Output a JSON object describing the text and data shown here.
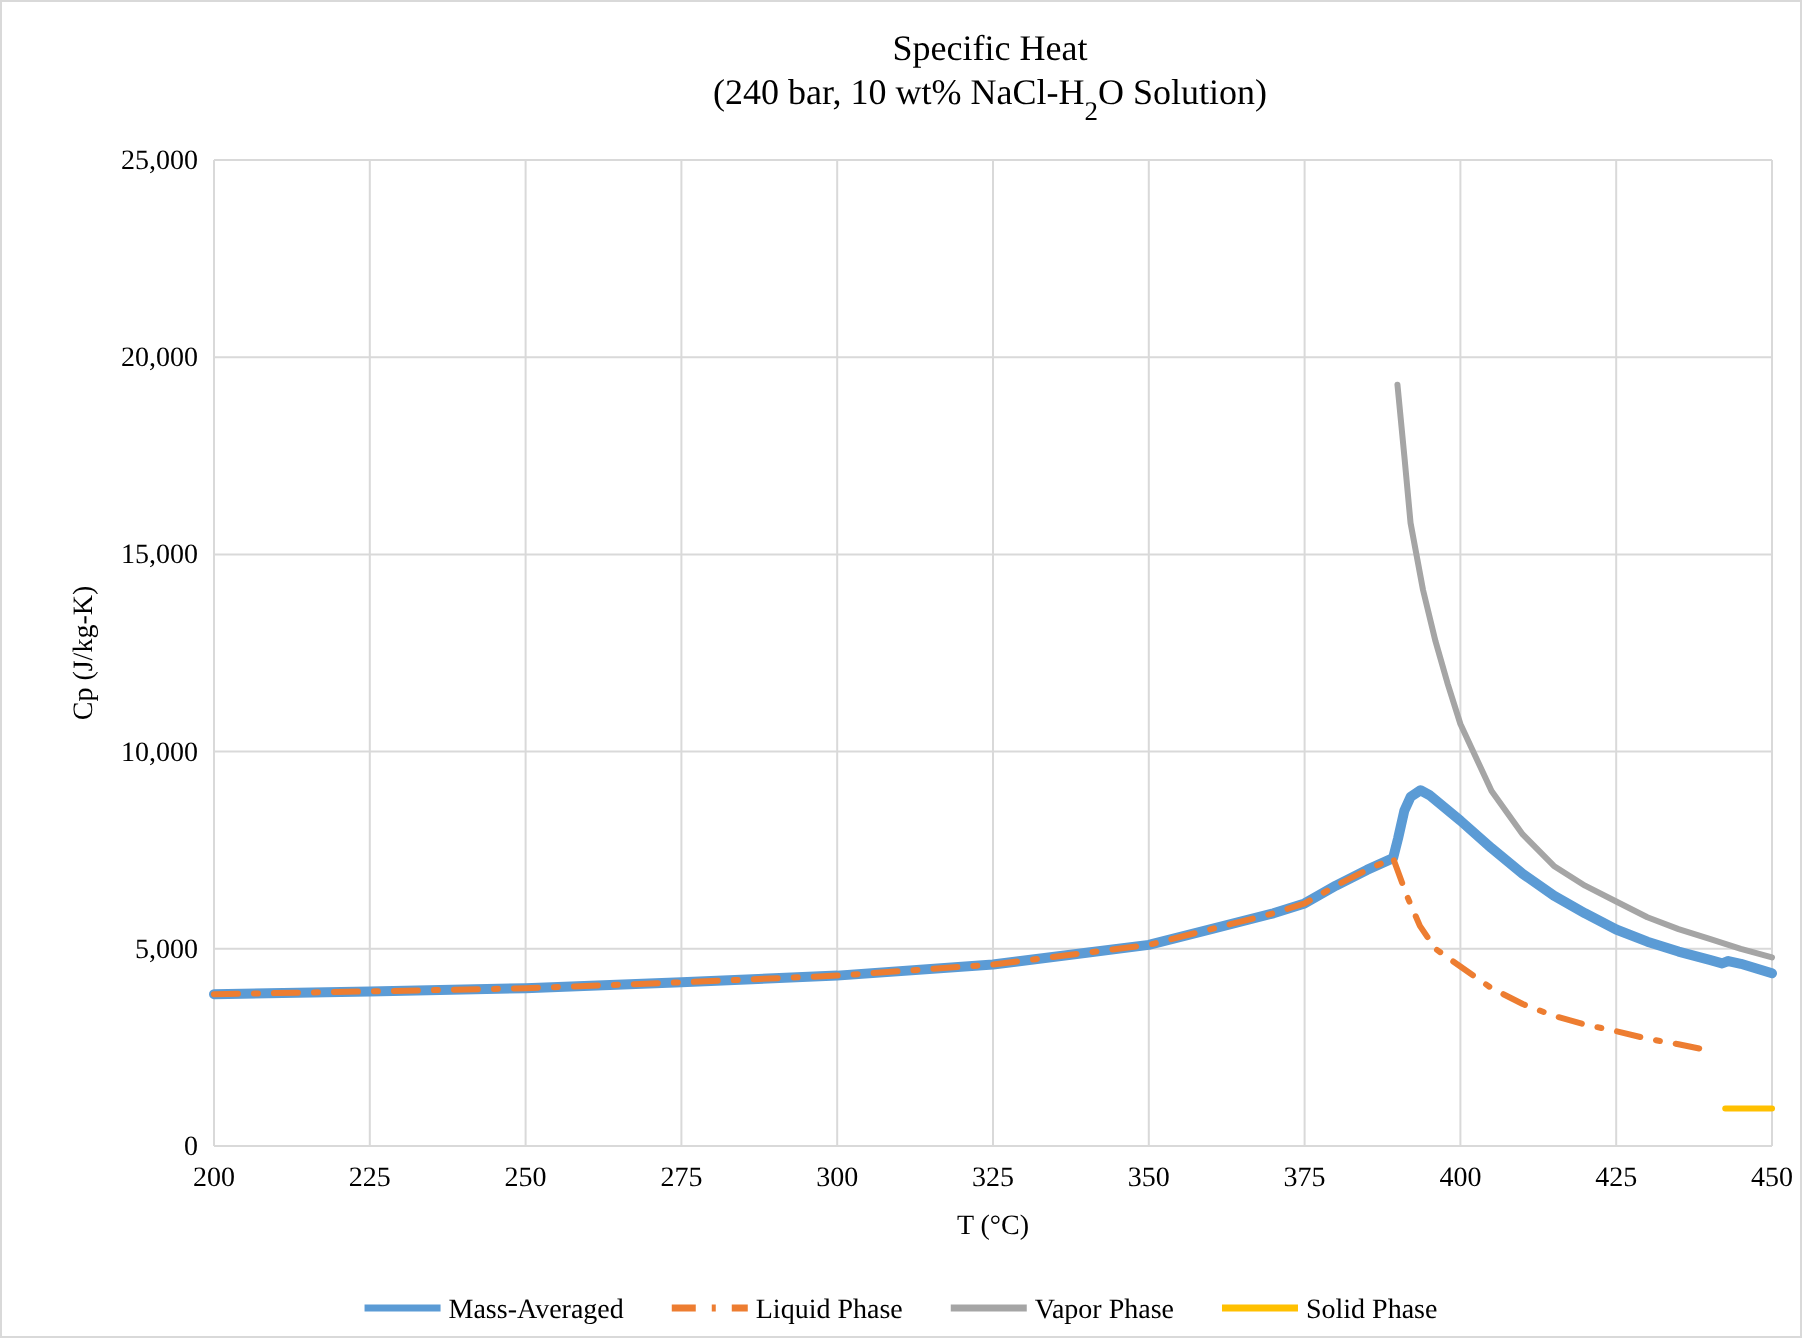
{
  "chart_data": {
    "type": "line",
    "title": "Specific  Heat",
    "subtitle": "(240 bar, 10 wt% NaCl-H$_{2}$O Solution)",
    "xlabel": "T (°C)",
    "ylabel": "Cp (J/kg-K)",
    "xlim": [
      200,
      450
    ],
    "xticks": [
      200,
      225,
      250,
      275,
      300,
      325,
      350,
      375,
      400,
      425,
      450
    ],
    "ylim": [
      0,
      25000
    ],
    "yticks": [
      0,
      {
        "value": 5000,
        "label": "5,000"
      },
      {
        "value": 10000,
        "label": "10,000"
      },
      {
        "value": 15000,
        "label": "15,000"
      },
      {
        "value": 20000,
        "label": "20,000"
      },
      {
        "value": 25000,
        "label": "25,000"
      }
    ],
    "grid": true,
    "legend": "bottom",
    "marker": "none",
    "series": [
      {
        "name": "Mass-Averaged",
        "color": "#5b9bd5",
        "line_style": "solid",
        "x": [
          200,
          225,
          250,
          275,
          300,
          325,
          340,
          350,
          360,
          370,
          375,
          380,
          385,
          389.2,
          390,
          391,
          392,
          393.6,
          395,
          400,
          405,
          410,
          415,
          420,
          425,
          430,
          435,
          440,
          442,
          443,
          445,
          450
        ],
        "values": [
          3850,
          3920,
          4000,
          4150,
          4320,
          4600,
          4900,
          5100,
          5500,
          5900,
          6150,
          6600,
          7000,
          7300,
          7800,
          8500,
          8850,
          9020,
          8900,
          8250,
          7550,
          6900,
          6350,
          5900,
          5490,
          5180,
          4930,
          4720,
          4630,
          4690,
          4620,
          4380
        ]
      },
      {
        "name": "Liquid Phase",
        "color": "#ed7d31",
        "line_style": "dashdot",
        "x": [
          200,
          225,
          250,
          275,
          300,
          325,
          340,
          350,
          360,
          370,
          375,
          380,
          385,
          389.2,
          391.4,
          393.5,
          396,
          400,
          405,
          410,
          415,
          420,
          425,
          430,
          435,
          440
        ],
        "values": [
          3850,
          3920,
          4000,
          4150,
          4320,
          4600,
          4900,
          5100,
          5500,
          5900,
          6150,
          6600,
          7000,
          7300,
          6350,
          5580,
          5000,
          4550,
          4000,
          3600,
          3300,
          3080,
          2910,
          2720,
          2580,
          2420
        ]
      },
      {
        "name": "Vapor Phase",
        "color": "#a5a5a5",
        "line_style": "solid",
        "x": [
          389.9,
          391,
          392,
          394,
          396,
          398,
          400,
          405,
          410,
          415,
          420,
          425,
          430,
          435,
          440,
          445,
          450
        ],
        "values": [
          19300,
          17500,
          15800,
          14100,
          12800,
          11700,
          10700,
          9000,
          7900,
          7100,
          6600,
          6200,
          5800,
          5500,
          5250,
          5000,
          4780
        ]
      },
      {
        "name": "Solid Phase",
        "color": "#ffc000",
        "line_style": "solid",
        "x": [
          442.5,
          450
        ],
        "values": [
          950,
          950
        ]
      }
    ]
  }
}
